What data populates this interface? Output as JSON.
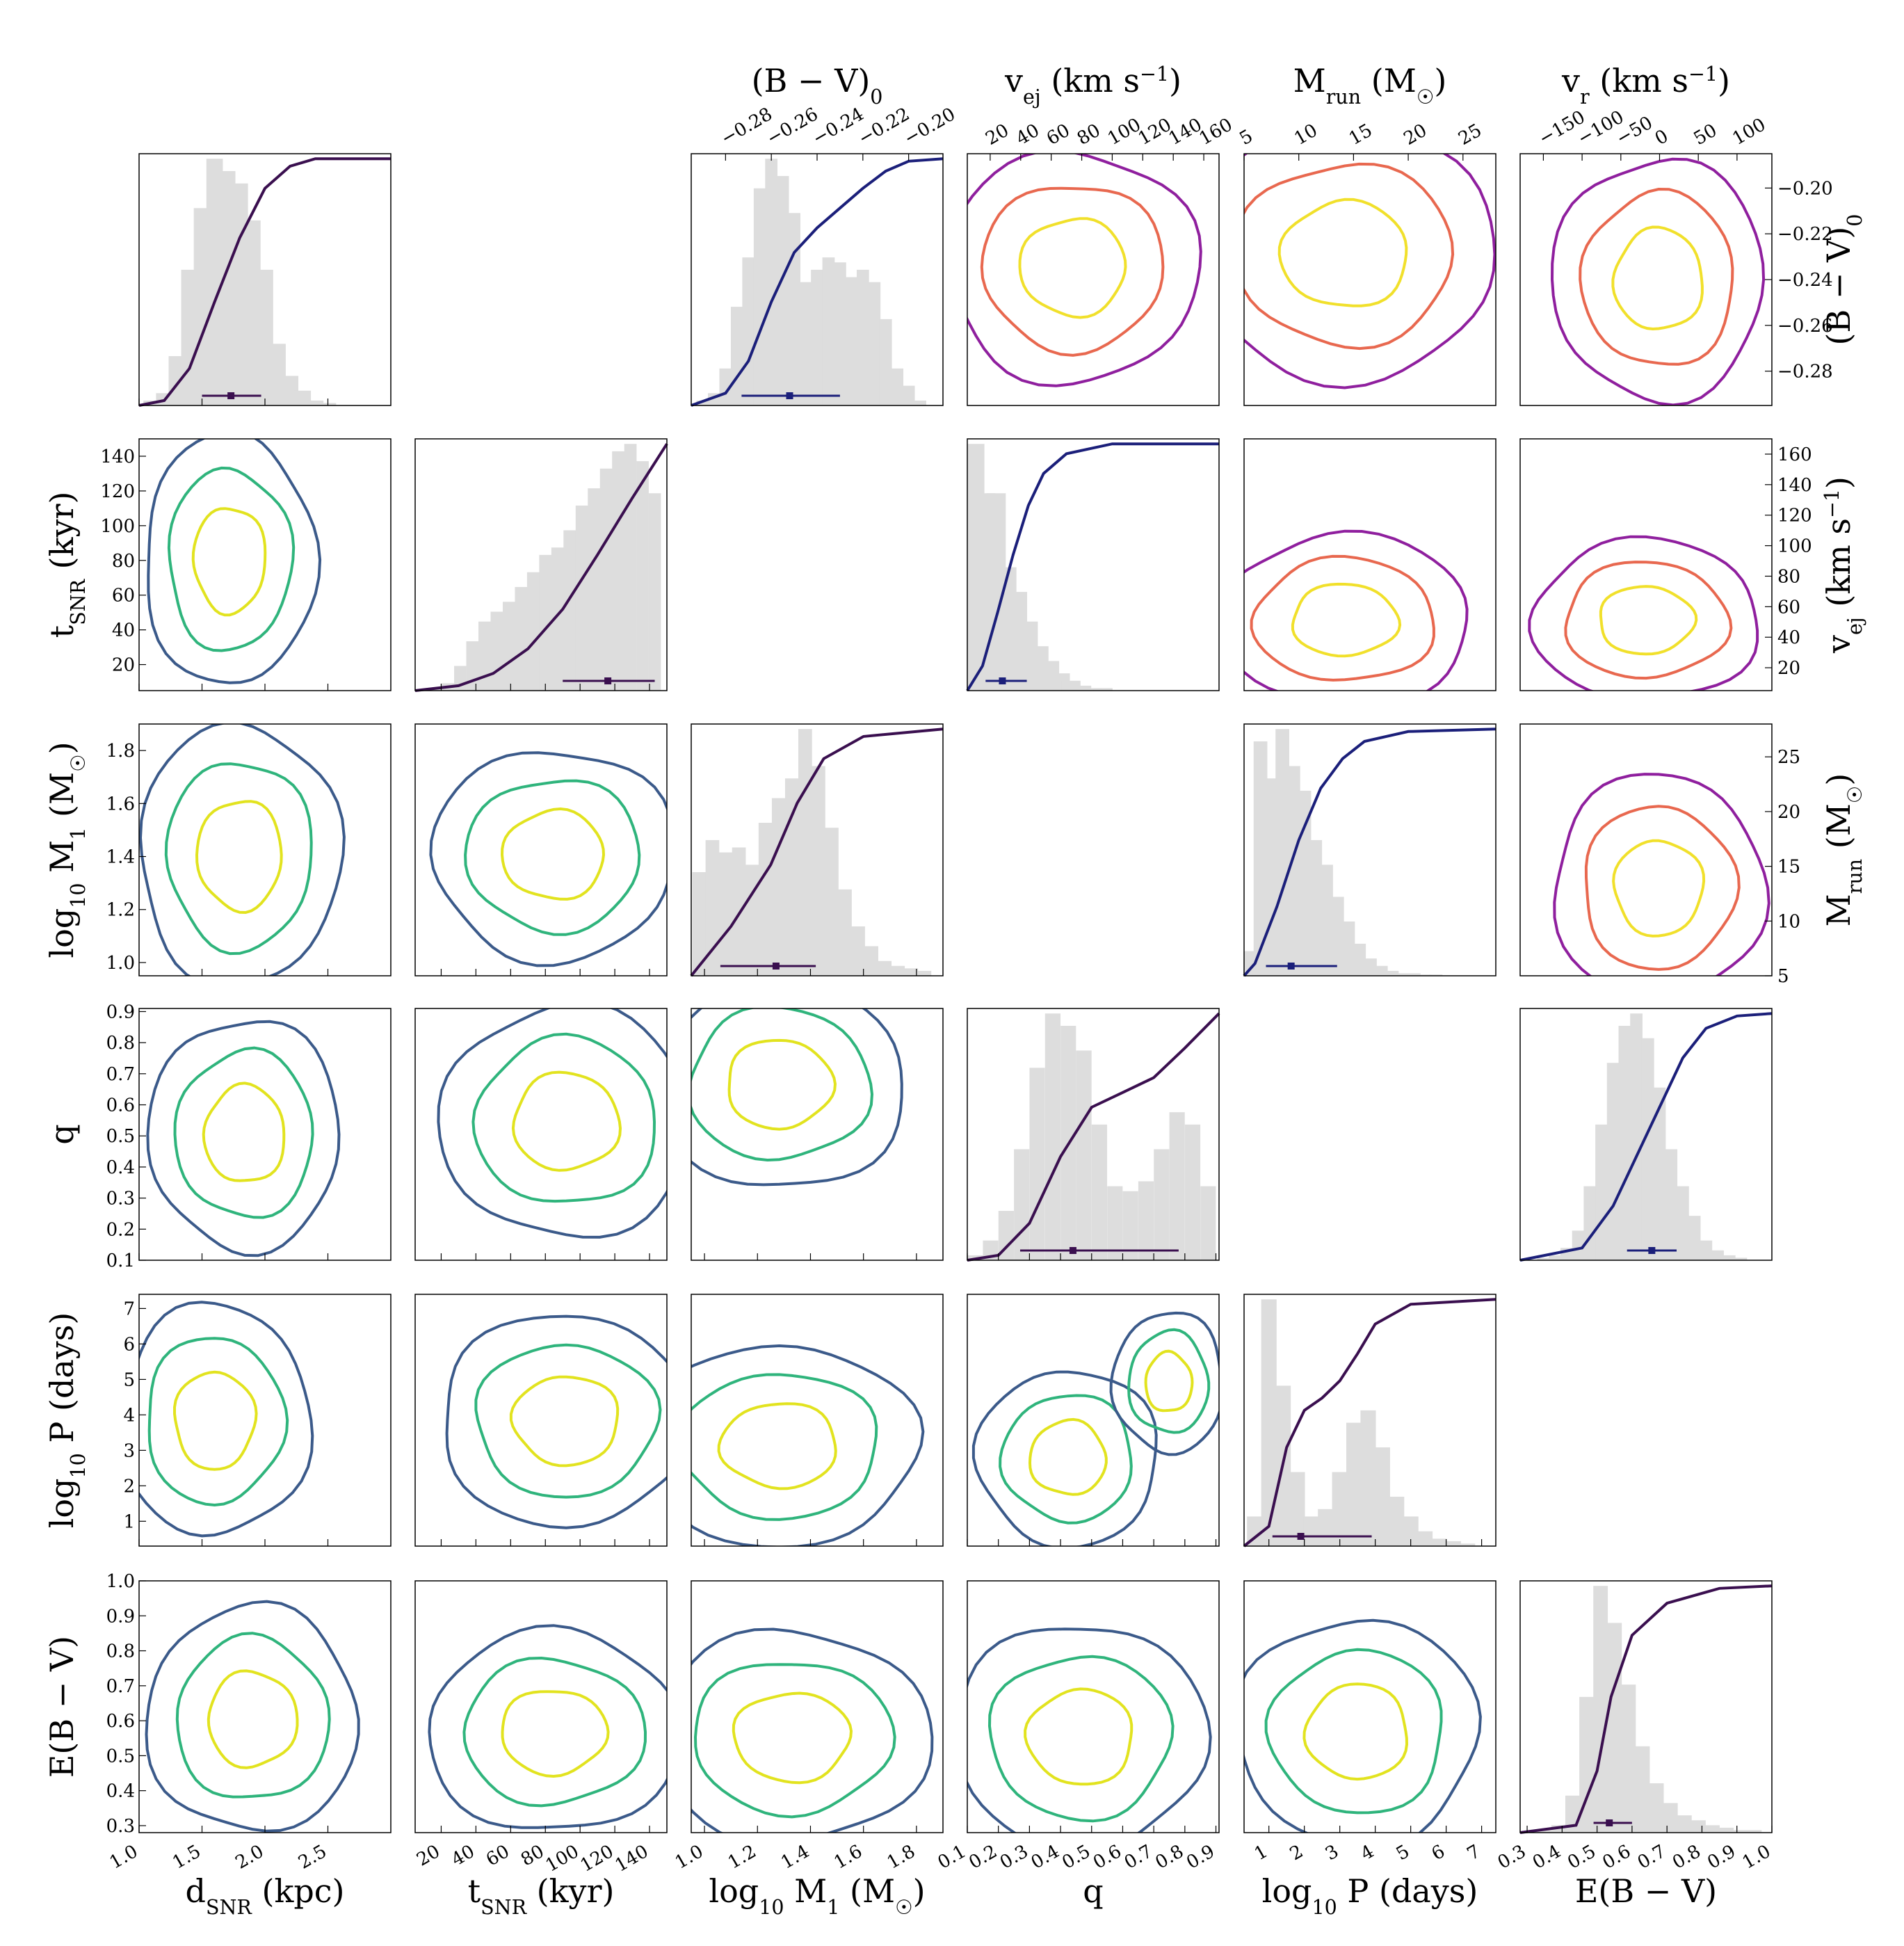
{
  "colors": {
    "hist": "#dddddd",
    "lower_levels": [
      "#3b5a8a",
      "#2fb47c",
      "#e2e31f"
    ],
    "upper_levels": [
      "#8f1f9e",
      "#e8684f",
      "#f1e02b"
    ],
    "cdf_dark": "#3a0f4f",
    "cdf_blue": "#1b1f7a"
  },
  "lower_params": [
    {
      "id": "d",
      "label": "d_SNR (kpc)",
      "ticks": [
        "1.0",
        "1.5",
        "2.0",
        "2.5"
      ],
      "range": [
        1.0,
        3.0
      ]
    },
    {
      "id": "t",
      "label": "t_SNR (kyr)",
      "ticks": [
        "20",
        "40",
        "60",
        "80",
        "100",
        "120",
        "140"
      ],
      "range": [
        5,
        150
      ]
    },
    {
      "id": "m",
      "label": "log10 M1 (M☉)",
      "ticks": [
        "1.0",
        "1.2",
        "1.4",
        "1.6",
        "1.8"
      ],
      "range": [
        0.95,
        1.9
      ]
    },
    {
      "id": "q",
      "label": "q",
      "ticks": [
        "0.1",
        "0.2",
        "0.3",
        "0.4",
        "0.5",
        "0.6",
        "0.7",
        "0.8",
        "0.9"
      ],
      "range": [
        0.1,
        0.91
      ]
    },
    {
      "id": "p",
      "label": "log10 P (days)",
      "ticks": [
        "1",
        "2",
        "3",
        "4",
        "5",
        "6",
        "7"
      ],
      "range": [
        0.3,
        7.4
      ]
    },
    {
      "id": "e",
      "label": "E(B − V)",
      "ticks": [
        "0.3",
        "0.4",
        "0.5",
        "0.6",
        "0.7",
        "0.8",
        "0.9",
        "1.0"
      ],
      "range": [
        0.28,
        1.0
      ]
    }
  ],
  "upper_params": [
    {
      "id": "bv",
      "label": "(B − V)0",
      "ticks": [
        "−0.28",
        "−0.26",
        "−0.24",
        "−0.22",
        "−0.20"
      ],
      "range": [
        -0.295,
        -0.185
      ]
    },
    {
      "id": "vej",
      "label": "v_ej (km s⁻¹)",
      "ticks": [
        "20",
        "40",
        "60",
        "80",
        "100",
        "120",
        "140",
        "160"
      ],
      "range": [
        5,
        170
      ]
    },
    {
      "id": "mrun",
      "label": "M_run (M☉)",
      "ticks": [
        "5",
        "10",
        "15",
        "20",
        "25"
      ],
      "range": [
        5,
        28
      ]
    },
    {
      "id": "vr",
      "label": "v_r (km s⁻¹)",
      "ticks": [
        "−150",
        "−100",
        "−50",
        "0",
        "50",
        "100"
      ],
      "range": [
        -180,
        145
      ]
    }
  ],
  "axis_labels": {
    "d": [
      "d",
      "SNR",
      " (kpc)"
    ],
    "t": [
      "t",
      "SNR",
      " (kyr)"
    ],
    "m": [
      "log",
      "10",
      " M",
      "1",
      " (M",
      "☉",
      ")"
    ],
    "q": [
      "q"
    ],
    "p": [
      "log",
      "10",
      " P (days)"
    ],
    "e": [
      "E(B − V)"
    ],
    "bv": [
      "(B − V)",
      "0"
    ],
    "vej": [
      "v",
      "ej",
      " (km s",
      "−1",
      ")"
    ],
    "mrun": [
      "M",
      "run",
      " (M",
      "☉",
      ")"
    ],
    "vr": [
      "v",
      "r",
      " (km s",
      "−1",
      ")"
    ]
  },
  "chart_data": {
    "type": "corner",
    "lower_triangle": {
      "diagonal_histograms": {
        "d": {
          "bins": [
            1.1,
            1.2,
            1.3,
            1.4,
            1.5,
            1.6,
            1.7,
            1.8,
            1.9,
            2.0,
            2.1,
            2.2,
            2.3,
            2.4,
            2.5
          ],
          "counts": [
            0.02,
            0.05,
            0.2,
            0.55,
            0.8,
            1.0,
            0.95,
            0.9,
            0.75,
            0.55,
            0.25,
            0.12,
            0.06,
            0.02,
            0.01
          ],
          "cdf": [
            [
              1.0,
              0.0
            ],
            [
              1.2,
              0.02
            ],
            [
              1.4,
              0.15
            ],
            [
              1.6,
              0.42
            ],
            [
              1.8,
              0.68
            ],
            [
              2.0,
              0.88
            ],
            [
              2.2,
              0.97
            ],
            [
              2.4,
              1.0
            ],
            [
              3.0,
              1.0
            ]
          ],
          "median": 1.73,
          "interval": [
            1.5,
            1.97
          ]
        },
        "t": {
          "bins": [
            10,
            17,
            24,
            31,
            38,
            45,
            52,
            59,
            66,
            73,
            80,
            87,
            94,
            101,
            108,
            115,
            122,
            129,
            136,
            143
          ],
          "counts": [
            0.0,
            0.01,
            0.03,
            0.1,
            0.2,
            0.28,
            0.32,
            0.36,
            0.42,
            0.48,
            0.55,
            0.58,
            0.65,
            0.75,
            0.82,
            0.9,
            0.97,
            1.0,
            0.93,
            0.8
          ],
          "cdf": [
            [
              5,
              0.0
            ],
            [
              30,
              0.02
            ],
            [
              50,
              0.07
            ],
            [
              70,
              0.17
            ],
            [
              90,
              0.33
            ],
            [
              110,
              0.55
            ],
            [
              130,
              0.78
            ],
            [
              150,
              1.0
            ]
          ],
          "median": 116,
          "interval": [
            90,
            143
          ]
        },
        "m": {
          "bins": [
            0.98,
            1.03,
            1.08,
            1.13,
            1.18,
            1.23,
            1.28,
            1.33,
            1.38,
            1.43,
            1.48,
            1.53,
            1.58,
            1.63,
            1.68,
            1.73,
            1.78,
            1.83
          ],
          "counts": [
            0.42,
            0.55,
            0.5,
            0.52,
            0.45,
            0.62,
            0.72,
            0.8,
            1.0,
            0.85,
            0.6,
            0.35,
            0.2,
            0.12,
            0.06,
            0.04,
            0.03,
            0.02
          ],
          "cdf": [
            [
              0.95,
              0.0
            ],
            [
              1.1,
              0.2
            ],
            [
              1.25,
              0.45
            ],
            [
              1.35,
              0.7
            ],
            [
              1.45,
              0.88
            ],
            [
              1.6,
              0.97
            ],
            [
              1.9,
              1.0
            ]
          ],
          "median": 1.27,
          "interval": [
            1.06,
            1.42
          ]
        },
        "q": {
          "bins": [
            0.125,
            0.175,
            0.225,
            0.275,
            0.325,
            0.375,
            0.425,
            0.475,
            0.525,
            0.575,
            0.625,
            0.675,
            0.725,
            0.775,
            0.825,
            0.875
          ],
          "counts": [
            0.02,
            0.08,
            0.2,
            0.45,
            0.78,
            1.0,
            0.95,
            0.85,
            0.55,
            0.3,
            0.28,
            0.32,
            0.45,
            0.6,
            0.55,
            0.3
          ],
          "cdf": [
            [
              0.1,
              0.0
            ],
            [
              0.2,
              0.02
            ],
            [
              0.3,
              0.15
            ],
            [
              0.4,
              0.42
            ],
            [
              0.5,
              0.62
            ],
            [
              0.6,
              0.68
            ],
            [
              0.7,
              0.74
            ],
            [
              0.8,
              0.86
            ],
            [
              0.91,
              1.0
            ]
          ],
          "median": 0.44,
          "interval": [
            0.27,
            0.78
          ]
        },
        "p": {
          "bins": [
            0.6,
            1.0,
            1.4,
            1.8,
            2.2,
            2.6,
            3.0,
            3.4,
            3.8,
            4.2,
            4.6,
            5.0,
            5.4,
            5.8,
            6.2,
            6.6
          ],
          "counts": [
            0.12,
            1.0,
            0.65,
            0.3,
            0.12,
            0.15,
            0.3,
            0.5,
            0.55,
            0.4,
            0.2,
            0.12,
            0.06,
            0.03,
            0.02,
            0.01
          ],
          "cdf": [
            [
              0.3,
              0.0
            ],
            [
              1.0,
              0.08
            ],
            [
              1.5,
              0.4
            ],
            [
              2.0,
              0.55
            ],
            [
              2.5,
              0.6
            ],
            [
              3.0,
              0.67
            ],
            [
              3.5,
              0.78
            ],
            [
              4.0,
              0.9
            ],
            [
              5.0,
              0.98
            ],
            [
              7.4,
              1.0
            ]
          ],
          "median": 1.9,
          "interval": [
            1.1,
            3.9
          ]
        },
        "e": {
          "bins": [
            0.31,
            0.35,
            0.39,
            0.43,
            0.47,
            0.51,
            0.55,
            0.59,
            0.63,
            0.67,
            0.71,
            0.75,
            0.79,
            0.83,
            0.87,
            0.91,
            0.95
          ],
          "counts": [
            0.0,
            0.01,
            0.03,
            0.15,
            0.55,
            1.0,
            0.85,
            0.6,
            0.35,
            0.2,
            0.12,
            0.07,
            0.05,
            0.03,
            0.02,
            0.01,
            0.01
          ],
          "cdf": [
            [
              0.28,
              0.0
            ],
            [
              0.44,
              0.03
            ],
            [
              0.5,
              0.25
            ],
            [
              0.54,
              0.55
            ],
            [
              0.6,
              0.8
            ],
            [
              0.7,
              0.93
            ],
            [
              0.85,
              0.99
            ],
            [
              1.0,
              1.0
            ]
          ],
          "median": 0.535,
          "interval": [
            0.49,
            0.6
          ]
        }
      }
    },
    "upper_triangle": {
      "diagonal_histograms": {
        "bv": {
          "bins": [
            -0.29,
            -0.285,
            -0.28,
            -0.275,
            -0.27,
            -0.265,
            -0.26,
            -0.255,
            -0.25,
            -0.245,
            -0.24,
            -0.235,
            -0.23,
            -0.225,
            -0.22,
            -0.215,
            -0.21,
            -0.205,
            -0.2,
            -0.195
          ],
          "counts": [
            0.02,
            0.05,
            0.15,
            0.4,
            0.6,
            0.88,
            1.0,
            0.93,
            0.78,
            0.5,
            0.55,
            0.6,
            0.58,
            0.52,
            0.55,
            0.5,
            0.35,
            0.15,
            0.08,
            0.02
          ],
          "cdf": [
            [
              -0.295,
              0.0
            ],
            [
              -0.28,
              0.05
            ],
            [
              -0.27,
              0.18
            ],
            [
              -0.26,
              0.42
            ],
            [
              -0.25,
              0.62
            ],
            [
              -0.24,
              0.72
            ],
            [
              -0.23,
              0.8
            ],
            [
              -0.22,
              0.88
            ],
            [
              -0.21,
              0.95
            ],
            [
              -0.2,
              0.99
            ],
            [
              -0.185,
              1.0
            ]
          ],
          "median": -0.252,
          "interval": [
            -0.273,
            -0.23
          ]
        },
        "vej": {
          "bins": [
            10,
            17,
            24,
            31,
            38,
            45,
            52,
            59,
            66,
            73,
            80,
            87,
            94
          ],
          "counts": [
            1.0,
            0.8,
            0.8,
            0.5,
            0.4,
            0.28,
            0.18,
            0.12,
            0.07,
            0.04,
            0.02,
            0.01,
            0.01
          ],
          "cdf": [
            [
              5,
              0.0
            ],
            [
              15,
              0.1
            ],
            [
              25,
              0.32
            ],
            [
              35,
              0.55
            ],
            [
              45,
              0.75
            ],
            [
              55,
              0.88
            ],
            [
              70,
              0.96
            ],
            [
              100,
              1.0
            ],
            [
              170,
              1.0
            ]
          ],
          "median": 28,
          "interval": [
            17,
            44
          ]
        },
        "mrun": {
          "bins": [
            5.5,
            6.5,
            7.5,
            8.5,
            9.5,
            10.5,
            11.5,
            12.5,
            13.5,
            14.5,
            15.5,
            16.5,
            17.5,
            18.5,
            19.5,
            20.5,
            21.5,
            22.5
          ],
          "counts": [
            0.1,
            0.95,
            0.8,
            1.0,
            0.85,
            0.75,
            0.55,
            0.45,
            0.32,
            0.22,
            0.13,
            0.07,
            0.04,
            0.02,
            0.01,
            0.01,
            0.005,
            0.005
          ],
          "cdf": [
            [
              5,
              0.0
            ],
            [
              6,
              0.05
            ],
            [
              8,
              0.28
            ],
            [
              10,
              0.55
            ],
            [
              12,
              0.76
            ],
            [
              14,
              0.88
            ],
            [
              16,
              0.95
            ],
            [
              20,
              0.99
            ],
            [
              28,
              1.0
            ]
          ],
          "median": 9.3,
          "interval": [
            7.0,
            13.5
          ]
        },
        "vr": {
          "bins": [
            -165,
            -150,
            -135,
            -120,
            -105,
            -90,
            -75,
            -60,
            -45,
            -30,
            -15,
            0,
            15,
            30,
            45,
            60,
            75,
            90,
            105,
            120
          ],
          "counts": [
            0.0,
            0.01,
            0.02,
            0.05,
            0.12,
            0.3,
            0.55,
            0.8,
            0.95,
            1.0,
            0.9,
            0.7,
            0.45,
            0.3,
            0.18,
            0.08,
            0.04,
            0.02,
            0.01,
            0.0
          ],
          "cdf": [
            [
              -180,
              0.0
            ],
            [
              -100,
              0.05
            ],
            [
              -60,
              0.22
            ],
            [
              -30,
              0.42
            ],
            [
              0,
              0.62
            ],
            [
              30,
              0.82
            ],
            [
              60,
              0.94
            ],
            [
              100,
              0.99
            ],
            [
              145,
              1.0
            ]
          ],
          "median": -10,
          "interval": [
            -42,
            22
          ]
        }
      }
    }
  }
}
